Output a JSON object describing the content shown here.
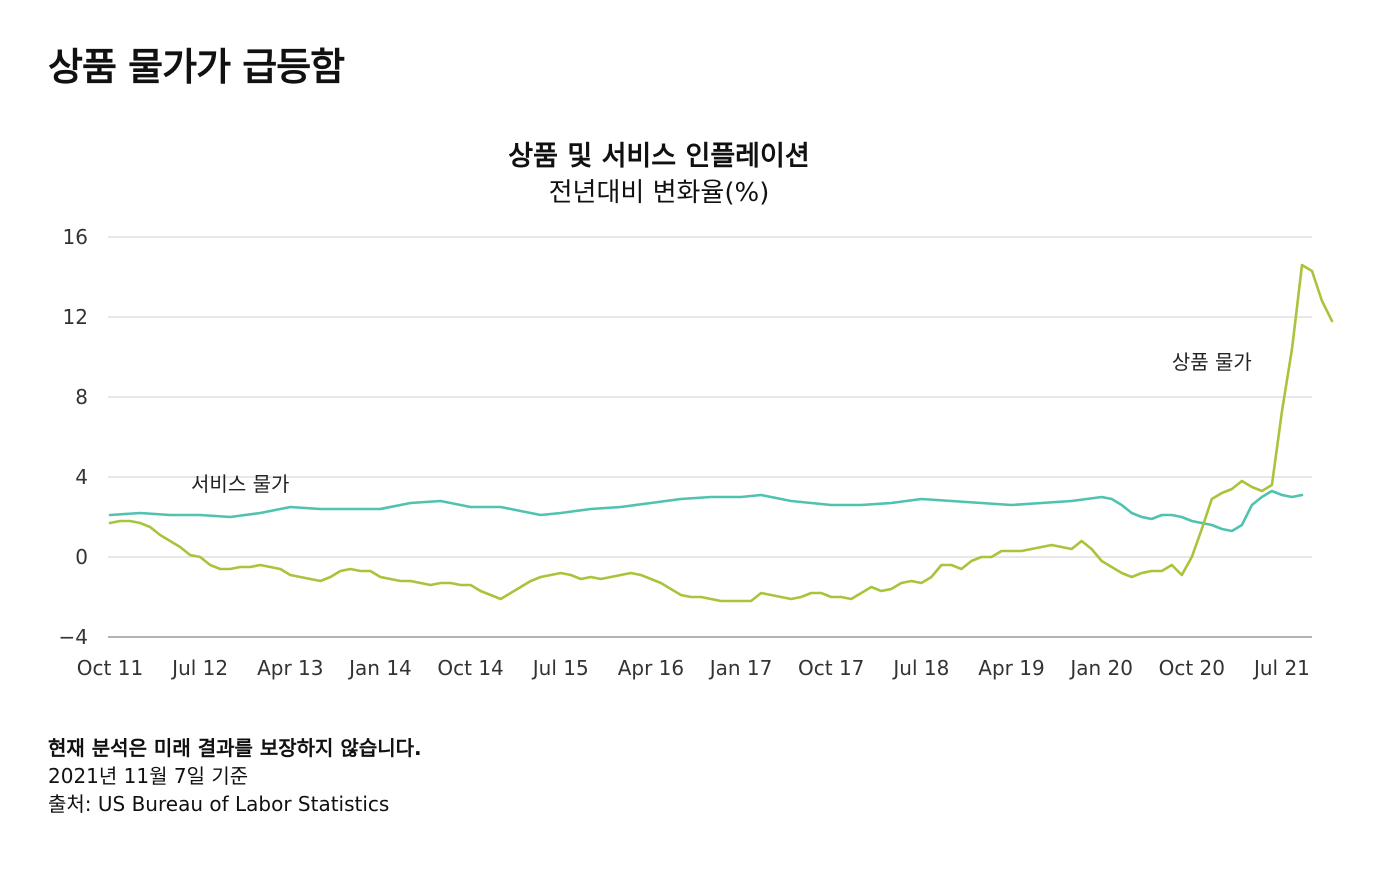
{
  "header": {
    "title": "상품 물가가 급등함"
  },
  "chart_data": {
    "type": "line",
    "title": "상품 및 서비스 인플레이션",
    "subtitle": "전년대비 변화율(%)",
    "ylim": [
      -4,
      16
    ],
    "yticks": [
      16,
      12,
      8,
      4,
      0,
      -4
    ],
    "ytick_labels": [
      "16",
      "12",
      "8",
      "4",
      "0",
      "−4"
    ],
    "xlim": [
      "2011-10",
      "2021-10"
    ],
    "xticks": [
      {
        "month": "2011-10",
        "label": "Oct 11"
      },
      {
        "month": "2012-07",
        "label": "Jul 12"
      },
      {
        "month": "2013-04",
        "label": "Apr 13"
      },
      {
        "month": "2014-01",
        "label": "Jan 14"
      },
      {
        "month": "2014-10",
        "label": "Oct 14"
      },
      {
        "month": "2015-07",
        "label": "Jul 15"
      },
      {
        "month": "2016-04",
        "label": "Apr 16"
      },
      {
        "month": "2017-01",
        "label": "Jan 17"
      },
      {
        "month": "2017-10",
        "label": "Oct 17"
      },
      {
        "month": "2018-07",
        "label": "Jul 18"
      },
      {
        "month": "2019-04",
        "label": "Apr 19"
      },
      {
        "month": "2020-01",
        "label": "Jan 20"
      },
      {
        "month": "2020-10",
        "label": "Oct 20"
      },
      {
        "month": "2021-07",
        "label": "Jul 21"
      }
    ],
    "grid": true,
    "series": [
      {
        "name": "서비스 물가",
        "color": "#4fc2b0",
        "label_anchor": {
          "month": "2012-11",
          "value": 3.3
        },
        "points": [
          [
            "2011-10",
            2.1
          ],
          [
            "2012-01",
            2.2
          ],
          [
            "2012-04",
            2.1
          ],
          [
            "2012-07",
            2.1
          ],
          [
            "2012-10",
            2.0
          ],
          [
            "2013-01",
            2.2
          ],
          [
            "2013-04",
            2.5
          ],
          [
            "2013-07",
            2.4
          ],
          [
            "2013-10",
            2.4
          ],
          [
            "2014-01",
            2.4
          ],
          [
            "2014-04",
            2.7
          ],
          [
            "2014-07",
            2.8
          ],
          [
            "2014-10",
            2.5
          ],
          [
            "2015-01",
            2.5
          ],
          [
            "2015-03",
            2.3
          ],
          [
            "2015-05",
            2.1
          ],
          [
            "2015-07",
            2.2
          ],
          [
            "2015-10",
            2.4
          ],
          [
            "2016-01",
            2.5
          ],
          [
            "2016-04",
            2.7
          ],
          [
            "2016-07",
            2.9
          ],
          [
            "2016-10",
            3.0
          ],
          [
            "2017-01",
            3.0
          ],
          [
            "2017-03",
            3.1
          ],
          [
            "2017-06",
            2.8
          ],
          [
            "2017-10",
            2.6
          ],
          [
            "2018-01",
            2.6
          ],
          [
            "2018-04",
            2.7
          ],
          [
            "2018-07",
            2.9
          ],
          [
            "2018-10",
            2.8
          ],
          [
            "2019-01",
            2.7
          ],
          [
            "2019-04",
            2.6
          ],
          [
            "2019-07",
            2.7
          ],
          [
            "2019-10",
            2.8
          ],
          [
            "2020-01",
            3.0
          ],
          [
            "2020-02",
            2.9
          ],
          [
            "2020-03",
            2.6
          ],
          [
            "2020-04",
            2.2
          ],
          [
            "2020-05",
            2.0
          ],
          [
            "2020-06",
            1.9
          ],
          [
            "2020-07",
            2.1
          ],
          [
            "2020-08",
            2.1
          ],
          [
            "2020-09",
            2.0
          ],
          [
            "2020-10",
            1.8
          ],
          [
            "2020-11",
            1.7
          ],
          [
            "2020-12",
            1.6
          ],
          [
            "2021-01",
            1.4
          ],
          [
            "2021-02",
            1.3
          ],
          [
            "2021-03",
            1.6
          ],
          [
            "2021-04",
            2.6
          ],
          [
            "2021-05",
            3.0
          ],
          [
            "2021-06",
            3.3
          ],
          [
            "2021-07",
            3.1
          ],
          [
            "2021-08",
            3.0
          ],
          [
            "2021-09",
            3.1
          ]
        ]
      },
      {
        "name": "상품 물가",
        "color": "#a8c43a",
        "label_anchor": {
          "month": "2020-12",
          "value": 9.4
        },
        "points": [
          [
            "2011-10",
            1.7
          ],
          [
            "2011-11",
            1.8
          ],
          [
            "2011-12",
            1.8
          ],
          [
            "2012-01",
            1.7
          ],
          [
            "2012-02",
            1.5
          ],
          [
            "2012-03",
            1.1
          ],
          [
            "2012-04",
            0.8
          ],
          [
            "2012-05",
            0.5
          ],
          [
            "2012-06",
            0.1
          ],
          [
            "2012-07",
            0.0
          ],
          [
            "2012-08",
            -0.4
          ],
          [
            "2012-09",
            -0.6
          ],
          [
            "2012-10",
            -0.6
          ],
          [
            "2012-11",
            -0.5
          ],
          [
            "2012-12",
            -0.5
          ],
          [
            "2013-01",
            -0.4
          ],
          [
            "2013-02",
            -0.5
          ],
          [
            "2013-03",
            -0.6
          ],
          [
            "2013-04",
            -0.9
          ],
          [
            "2013-05",
            -1.0
          ],
          [
            "2013-06",
            -1.1
          ],
          [
            "2013-07",
            -1.2
          ],
          [
            "2013-08",
            -1.0
          ],
          [
            "2013-09",
            -0.7
          ],
          [
            "2013-10",
            -0.6
          ],
          [
            "2013-11",
            -0.7
          ],
          [
            "2013-12",
            -0.7
          ],
          [
            "2014-01",
            -1.0
          ],
          [
            "2014-02",
            -1.1
          ],
          [
            "2014-03",
            -1.2
          ],
          [
            "2014-04",
            -1.2
          ],
          [
            "2014-05",
            -1.3
          ],
          [
            "2014-06",
            -1.4
          ],
          [
            "2014-07",
            -1.3
          ],
          [
            "2014-08",
            -1.3
          ],
          [
            "2014-09",
            -1.4
          ],
          [
            "2014-10",
            -1.4
          ],
          [
            "2014-11",
            -1.7
          ],
          [
            "2014-12",
            -1.9
          ],
          [
            "2015-01",
            -2.1
          ],
          [
            "2015-02",
            -1.8
          ],
          [
            "2015-03",
            -1.5
          ],
          [
            "2015-04",
            -1.2
          ],
          [
            "2015-05",
            -1.0
          ],
          [
            "2015-06",
            -0.9
          ],
          [
            "2015-07",
            -0.8
          ],
          [
            "2015-08",
            -0.9
          ],
          [
            "2015-09",
            -1.1
          ],
          [
            "2015-10",
            -1.0
          ],
          [
            "2015-11",
            -1.1
          ],
          [
            "2015-12",
            -1.0
          ],
          [
            "2016-01",
            -0.9
          ],
          [
            "2016-02",
            -0.8
          ],
          [
            "2016-03",
            -0.9
          ],
          [
            "2016-04",
            -1.1
          ],
          [
            "2016-05",
            -1.3
          ],
          [
            "2016-06",
            -1.6
          ],
          [
            "2016-07",
            -1.9
          ],
          [
            "2016-08",
            -2.0
          ],
          [
            "2016-09",
            -2.0
          ],
          [
            "2016-10",
            -2.1
          ],
          [
            "2016-11",
            -2.2
          ],
          [
            "2016-12",
            -2.2
          ],
          [
            "2017-01",
            -2.2
          ],
          [
            "2017-02",
            -2.2
          ],
          [
            "2017-03",
            -1.8
          ],
          [
            "2017-04",
            -1.9
          ],
          [
            "2017-05",
            -2.0
          ],
          [
            "2017-06",
            -2.1
          ],
          [
            "2017-07",
            -2.0
          ],
          [
            "2017-08",
            -1.8
          ],
          [
            "2017-09",
            -1.8
          ],
          [
            "2017-10",
            -2.0
          ],
          [
            "2017-11",
            -2.0
          ],
          [
            "2017-12",
            -2.1
          ],
          [
            "2018-01",
            -1.8
          ],
          [
            "2018-02",
            -1.5
          ],
          [
            "2018-03",
            -1.7
          ],
          [
            "2018-04",
            -1.6
          ],
          [
            "2018-05",
            -1.3
          ],
          [
            "2018-06",
            -1.2
          ],
          [
            "2018-07",
            -1.3
          ],
          [
            "2018-08",
            -1.0
          ],
          [
            "2018-09",
            -0.4
          ],
          [
            "2018-10",
            -0.4
          ],
          [
            "2018-11",
            -0.6
          ],
          [
            "2018-12",
            -0.2
          ],
          [
            "2019-01",
            0.0
          ],
          [
            "2019-02",
            0.0
          ],
          [
            "2019-03",
            0.3
          ],
          [
            "2019-04",
            0.3
          ],
          [
            "2019-05",
            0.3
          ],
          [
            "2019-06",
            0.4
          ],
          [
            "2019-07",
            0.5
          ],
          [
            "2019-08",
            0.6
          ],
          [
            "2019-09",
            0.5
          ],
          [
            "2019-10",
            0.4
          ],
          [
            "2019-11",
            0.8
          ],
          [
            "2019-12",
            0.4
          ],
          [
            "2020-01",
            -0.2
          ],
          [
            "2020-02",
            -0.5
          ],
          [
            "2020-03",
            -0.8
          ],
          [
            "2020-04",
            -1.0
          ],
          [
            "2020-05",
            -0.8
          ],
          [
            "2020-06",
            -0.7
          ],
          [
            "2020-07",
            -0.7
          ],
          [
            "2020-08",
            -0.4
          ],
          [
            "2020-09",
            -0.9
          ],
          [
            "2020-10",
            0.0
          ],
          [
            "2020-11",
            1.4
          ],
          [
            "2020-12",
            2.9
          ],
          [
            "2021-01",
            3.2
          ],
          [
            "2021-02",
            3.4
          ],
          [
            "2021-03",
            3.8
          ],
          [
            "2021-04",
            3.5
          ],
          [
            "2021-05",
            3.3
          ],
          [
            "2021-06",
            3.6
          ],
          [
            "2021-07",
            7.3
          ],
          [
            "2021-08",
            10.4
          ],
          [
            "2021-09",
            14.6
          ],
          [
            "2021-10",
            14.3
          ],
          [
            "2021-11",
            12.8
          ],
          [
            "2021-12",
            11.8
          ]
        ]
      }
    ]
  },
  "footer": {
    "disclaimer": "현재 분석은 미래 결과를 보장하지 않습니다.",
    "date": "2021년 11월 7일 기준",
    "source": "출처: US Bureau of Labor Statistics"
  }
}
